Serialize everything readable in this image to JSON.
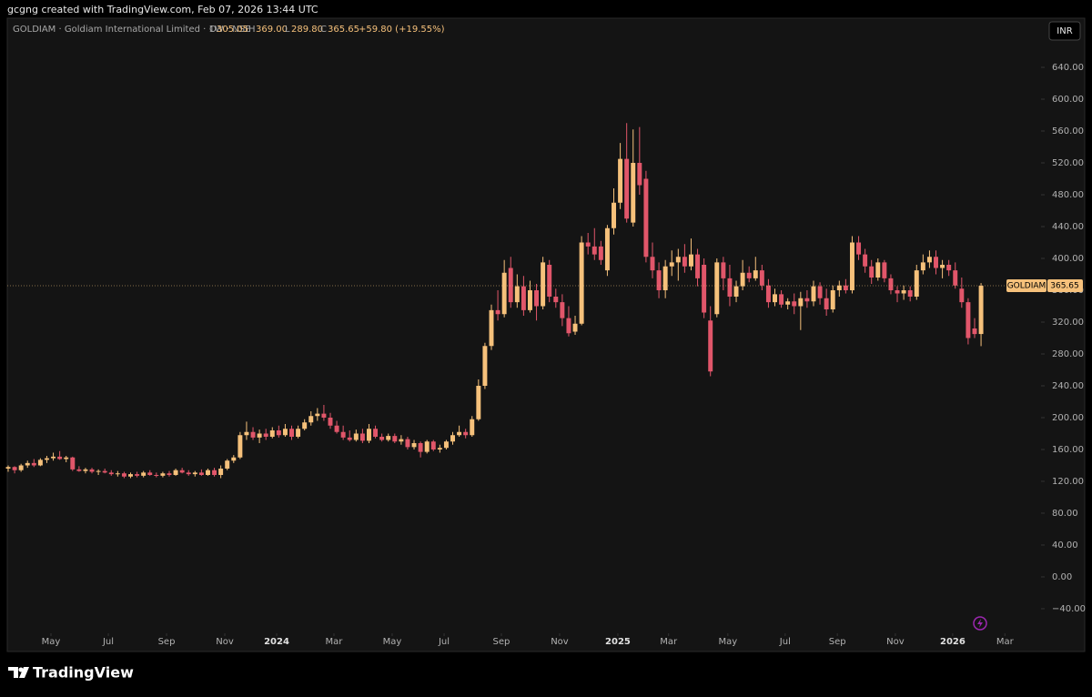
{
  "header": {
    "caption": "gcgng created with TradingView.com, Feb 07, 2026 13:44 UTC",
    "symbol": "GOLDIAM · Goldiam International Limited · 1W · NSE",
    "o_key": "O",
    "o_val": "305.05",
    "h_key": "H",
    "h_val": "369.00",
    "l_key": "L",
    "l_val": "289.80",
    "c_key": "C",
    "c_val": "365.65",
    "change": "+59.80 (+19.55%)",
    "currency": "INR"
  },
  "footer": {
    "brand": "TradingView"
  },
  "chart_data": {
    "type": "candlestick",
    "name": "GOLDIAM",
    "last_label": "365.65",
    "up_color": "#f6c17b",
    "down_color": "#e1566a",
    "xlim": [
      -0.14,
      160.03
    ],
    "ylim": [
      -68.6,
      674.3
    ],
    "xticks": [
      {
        "value": 6.64,
        "label": "May"
      },
      {
        "value": 15.54,
        "label": "Jul"
      },
      {
        "value": 24.58,
        "label": "Sep"
      },
      {
        "value": 33.62,
        "label": "Nov"
      },
      {
        "value": 41.67,
        "label": "2024"
      },
      {
        "value": 50.56,
        "label": "Mar"
      },
      {
        "value": 59.6,
        "label": "May"
      },
      {
        "value": 67.66,
        "label": "Jul"
      },
      {
        "value": 76.55,
        "label": "Sep"
      },
      {
        "value": 85.59,
        "label": "Nov"
      },
      {
        "value": 94.63,
        "label": "2025"
      },
      {
        "value": 102.5,
        "label": "Mar"
      },
      {
        "value": 111.7,
        "label": "May"
      },
      {
        "value": 120.6,
        "label": "Jul"
      },
      {
        "value": 128.7,
        "label": "Sep"
      },
      {
        "value": 137.7,
        "label": "Nov"
      },
      {
        "value": 146.6,
        "label": "2026"
      },
      {
        "value": 154.7,
        "label": "Mar"
      }
    ],
    "yticks": [
      {
        "value": -40,
        "label": "−40.00"
      },
      {
        "value": 0,
        "label": "0.00"
      },
      {
        "value": 40,
        "label": "40.00"
      },
      {
        "value": 80,
        "label": "80.00"
      },
      {
        "value": 120,
        "label": "120.00"
      },
      {
        "value": 160,
        "label": "160.00"
      },
      {
        "value": 200,
        "label": "200.00"
      },
      {
        "value": 240,
        "label": "240.00"
      },
      {
        "value": 280,
        "label": "280.00"
      },
      {
        "value": 320,
        "label": "320.00"
      },
      {
        "value": 360,
        "label": "360.00"
      },
      {
        "value": 400,
        "label": "400.00"
      },
      {
        "value": 440,
        "label": "440.00"
      },
      {
        "value": 480,
        "label": "480.00"
      },
      {
        "value": 520,
        "label": "520.00"
      },
      {
        "value": 560,
        "label": "560.00"
      },
      {
        "value": 600,
        "label": "600.00"
      },
      {
        "value": 640,
        "label": "640.00"
      }
    ],
    "ohlc": [
      [
        136,
        140,
        132,
        138
      ],
      [
        138,
        139,
        130,
        134
      ],
      [
        134,
        142,
        132,
        140
      ],
      [
        140,
        146,
        137,
        143
      ],
      [
        143,
        148,
        138,
        140
      ],
      [
        140,
        149,
        139,
        147
      ],
      [
        147,
        152,
        143,
        149
      ],
      [
        149,
        156,
        146,
        151
      ],
      [
        151,
        158,
        147,
        148
      ],
      [
        148,
        152,
        144,
        150
      ],
      [
        150,
        151,
        133,
        135
      ],
      [
        135,
        139,
        132,
        133
      ],
      [
        133,
        137,
        130,
        135
      ],
      [
        135,
        137,
        130,
        132
      ],
      [
        132,
        135,
        128,
        133
      ],
      [
        133,
        136,
        130,
        131
      ],
      [
        131,
        134,
        127,
        129
      ],
      [
        129,
        133,
        126,
        130
      ],
      [
        130,
        132,
        124,
        126
      ],
      [
        126,
        131,
        124,
        129
      ],
      [
        129,
        132,
        125,
        127
      ],
      [
        127,
        133,
        125,
        131
      ],
      [
        131,
        134,
        127,
        128
      ],
      [
        128,
        131,
        125,
        127
      ],
      [
        127,
        132,
        125,
        130
      ],
      [
        130,
        133,
        126,
        128
      ],
      [
        128,
        136,
        127,
        134
      ],
      [
        134,
        137,
        130,
        131
      ],
      [
        131,
        134,
        127,
        129
      ],
      [
        129,
        133,
        126,
        131
      ],
      [
        131,
        135,
        127,
        128
      ],
      [
        128,
        136,
        127,
        134
      ],
      [
        134,
        137,
        126,
        128
      ],
      [
        128,
        140,
        124,
        136
      ],
      [
        136,
        148,
        134,
        146
      ],
      [
        146,
        153,
        143,
        150
      ],
      [
        150,
        182,
        148,
        178
      ],
      [
        178,
        195,
        172,
        182
      ],
      [
        182,
        188,
        172,
        175
      ],
      [
        175,
        185,
        168,
        180
      ],
      [
        180,
        186,
        172,
        176
      ],
      [
        176,
        188,
        174,
        184
      ],
      [
        184,
        190,
        175,
        178
      ],
      [
        178,
        192,
        176,
        186
      ],
      [
        186,
        190,
        172,
        176
      ],
      [
        176,
        190,
        174,
        186
      ],
      [
        186,
        198,
        184,
        194
      ],
      [
        194,
        208,
        190,
        202
      ],
      [
        202,
        212,
        196,
        205
      ],
      [
        205,
        216,
        196,
        200
      ],
      [
        200,
        206,
        186,
        190
      ],
      [
        190,
        196,
        180,
        182
      ],
      [
        182,
        190,
        172,
        175
      ],
      [
        175,
        184,
        170,
        172
      ],
      [
        172,
        185,
        170,
        180
      ],
      [
        180,
        186,
        168,
        171
      ],
      [
        171,
        192,
        168,
        186
      ],
      [
        186,
        190,
        174,
        176
      ],
      [
        176,
        180,
        170,
        172
      ],
      [
        172,
        180,
        170,
        177
      ],
      [
        177,
        180,
        168,
        170
      ],
      [
        170,
        178,
        166,
        173
      ],
      [
        173,
        176,
        160,
        163
      ],
      [
        163,
        172,
        160,
        168
      ],
      [
        168,
        170,
        150,
        157
      ],
      [
        157,
        172,
        155,
        170
      ],
      [
        170,
        172,
        158,
        160
      ],
      [
        160,
        166,
        156,
        162
      ],
      [
        162,
        172,
        160,
        170
      ],
      [
        170,
        182,
        166,
        178
      ],
      [
        178,
        190,
        176,
        182
      ],
      [
        182,
        186,
        174,
        178
      ],
      [
        178,
        202,
        176,
        198
      ],
      [
        198,
        248,
        196,
        240
      ],
      [
        240,
        294,
        236,
        290
      ],
      [
        290,
        342,
        285,
        335
      ],
      [
        335,
        360,
        322,
        330
      ],
      [
        330,
        398,
        326,
        382
      ],
      [
        388,
        402,
        338,
        345
      ],
      [
        345,
        380,
        338,
        365
      ],
      [
        365,
        378,
        328,
        335
      ],
      [
        335,
        372,
        332,
        360
      ],
      [
        360,
        368,
        322,
        340
      ],
      [
        340,
        402,
        336,
        395
      ],
      [
        392,
        398,
        345,
        352
      ],
      [
        352,
        362,
        338,
        345
      ],
      [
        345,
        355,
        315,
        325
      ],
      [
        325,
        340,
        302,
        306
      ],
      [
        308,
        328,
        304,
        318
      ],
      [
        318,
        428,
        316,
        420
      ],
      [
        420,
        432,
        405,
        415
      ],
      [
        415,
        438,
        398,
        405
      ],
      [
        415,
        422,
        392,
        398
      ],
      [
        385,
        442,
        378,
        438
      ],
      [
        438,
        488,
        430,
        470
      ],
      [
        470,
        545,
        462,
        525
      ],
      [
        525,
        570,
        445,
        450
      ],
      [
        445,
        562,
        440,
        520
      ],
      [
        520,
        565,
        480,
        492
      ],
      [
        500,
        510,
        395,
        402
      ],
      [
        402,
        420,
        375,
        385
      ],
      [
        385,
        395,
        350,
        360
      ],
      [
        360,
        398,
        350,
        390
      ],
      [
        390,
        410,
        378,
        395
      ],
      [
        395,
        412,
        372,
        402
      ],
      [
        402,
        418,
        382,
        390
      ],
      [
        390,
        425,
        385,
        405
      ],
      [
        405,
        412,
        365,
        375
      ],
      [
        392,
        400,
        325,
        332
      ],
      [
        322,
        340,
        252,
        258
      ],
      [
        330,
        400,
        326,
        395
      ],
      [
        395,
        402,
        360,
        375
      ],
      [
        375,
        392,
        340,
        352
      ],
      [
        352,
        372,
        345,
        365
      ],
      [
        365,
        398,
        360,
        382
      ],
      [
        382,
        390,
        370,
        375
      ],
      [
        375,
        402,
        372,
        385
      ],
      [
        385,
        392,
        360,
        366
      ],
      [
        366,
        374,
        338,
        345
      ],
      [
        345,
        362,
        340,
        355
      ],
      [
        355,
        360,
        338,
        342
      ],
      [
        342,
        350,
        336,
        346
      ],
      [
        346,
        356,
        330,
        340
      ],
      [
        340,
        358,
        310,
        350
      ],
      [
        350,
        360,
        338,
        346
      ],
      [
        346,
        372,
        340,
        365
      ],
      [
        365,
        370,
        342,
        350
      ],
      [
        350,
        362,
        328,
        336
      ],
      [
        336,
        366,
        332,
        360
      ],
      [
        360,
        372,
        352,
        366
      ],
      [
        366,
        374,
        356,
        360
      ],
      [
        360,
        428,
        356,
        420
      ],
      [
        420,
        428,
        398,
        405
      ],
      [
        405,
        412,
        382,
        390
      ],
      [
        390,
        398,
        368,
        376
      ],
      [
        376,
        400,
        372,
        395
      ],
      [
        395,
        398,
        370,
        375
      ],
      [
        375,
        380,
        355,
        360
      ],
      [
        360,
        365,
        345,
        356
      ],
      [
        356,
        366,
        348,
        360
      ],
      [
        360,
        365,
        346,
        352
      ],
      [
        352,
        392,
        348,
        385
      ],
      [
        385,
        405,
        380,
        395
      ],
      [
        395,
        410,
        388,
        402
      ],
      [
        402,
        410,
        380,
        388
      ],
      [
        388,
        398,
        375,
        392
      ],
      [
        392,
        398,
        378,
        385
      ],
      [
        385,
        395,
        362,
        366
      ],
      [
        362,
        376,
        338,
        345
      ],
      [
        345,
        350,
        292,
        300
      ],
      [
        312,
        325,
        300,
        305
      ],
      [
        305.05,
        369,
        289.8,
        365.65
      ]
    ]
  }
}
